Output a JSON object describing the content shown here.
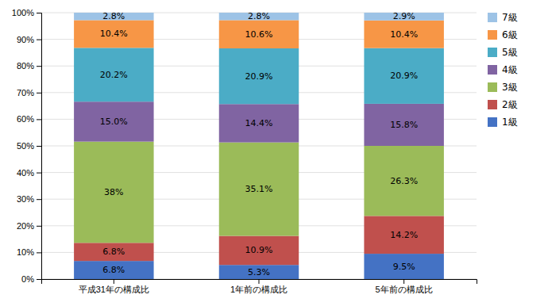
{
  "chart_data": {
    "type": "bar",
    "stacked": true,
    "data_labels": true,
    "grid": true,
    "legend": "right",
    "categories": [
      "平成31年の構成比",
      "1年前の構成比",
      "5年前の構成比"
    ],
    "series": [
      {
        "name": "1級",
        "color": "#4472C4",
        "values": [
          6.8,
          5.3,
          9.5
        ],
        "value_labels": [
          "6.8%",
          "5.3%",
          "9.5%"
        ]
      },
      {
        "name": "2級",
        "color": "#C0504D",
        "values": [
          6.8,
          10.9,
          14.2
        ],
        "value_labels": [
          "6.8%",
          "10.9%",
          "14.2%"
        ]
      },
      {
        "name": "3級",
        "color": "#9BBB59",
        "values": [
          38.0,
          35.1,
          26.3
        ],
        "value_labels": [
          "38%",
          "35.1%",
          "26.3%"
        ]
      },
      {
        "name": "4級",
        "color": "#8064A2",
        "values": [
          15.0,
          14.4,
          15.8
        ],
        "value_labels": [
          "15.0%",
          "14.4%",
          "15.8%"
        ]
      },
      {
        "name": "5級",
        "color": "#4BACC6",
        "values": [
          20.2,
          20.9,
          20.9
        ],
        "value_labels": [
          "20.2%",
          "20.9%",
          "20.9%"
        ]
      },
      {
        "name": "6級",
        "color": "#F79646",
        "values": [
          10.4,
          10.6,
          10.4
        ],
        "value_labels": [
          "10.4%",
          "10.6%",
          "10.4%"
        ]
      },
      {
        "name": "7級",
        "color": "#9DC3E6",
        "values": [
          2.8,
          2.8,
          2.9
        ],
        "value_labels": [
          "2.8%",
          "2.8%",
          "2.9%"
        ]
      }
    ],
    "ylim": [
      0,
      100
    ],
    "yticks": [
      {
        "value": 0,
        "label": "0%"
      },
      {
        "value": 10,
        "label": "10%"
      },
      {
        "value": 20,
        "label": "20%"
      },
      {
        "value": 30,
        "label": "30%"
      },
      {
        "value": 40,
        "label": "40%"
      },
      {
        "value": 50,
        "label": "50%"
      },
      {
        "value": 60,
        "label": "60%"
      },
      {
        "value": 70,
        "label": "70%"
      },
      {
        "value": 80,
        "label": "80%"
      },
      {
        "value": 90,
        "label": "90%"
      },
      {
        "value": 100,
        "label": "100%"
      }
    ]
  }
}
